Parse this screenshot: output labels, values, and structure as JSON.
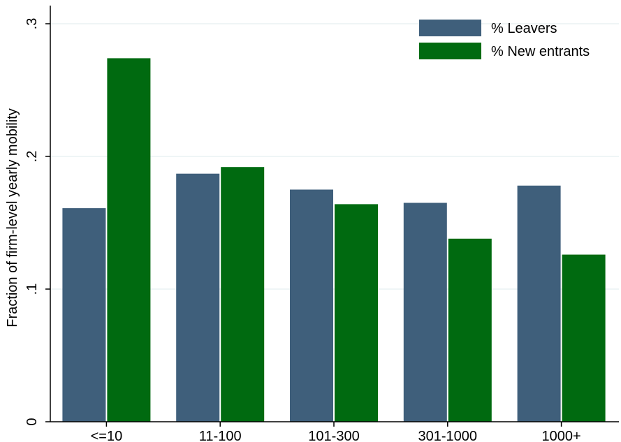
{
  "chart_data": {
    "type": "bar",
    "categories": [
      "<=10",
      "11-100",
      "101-300",
      "301-1000",
      "1000+"
    ],
    "series": [
      {
        "name": "% Leavers",
        "color": "#3f5f7b",
        "values": [
          0.161,
          0.187,
          0.175,
          0.165,
          0.178
        ]
      },
      {
        "name": "% New entrants",
        "color": "#006a10",
        "values": [
          0.274,
          0.192,
          0.164,
          0.138,
          0.126
        ]
      }
    ],
    "title": "",
    "xlabel": "",
    "ylabel": "Fraction of firm-level yearly mobility",
    "ylim": [
      0,
      0.3
    ],
    "yticks": [
      0,
      0.1,
      0.2,
      0.3
    ],
    "ytick_labels": [
      "0",
      ".1",
      ".2",
      ".3"
    ],
    "grid": true,
    "legend_position": "top-right"
  }
}
